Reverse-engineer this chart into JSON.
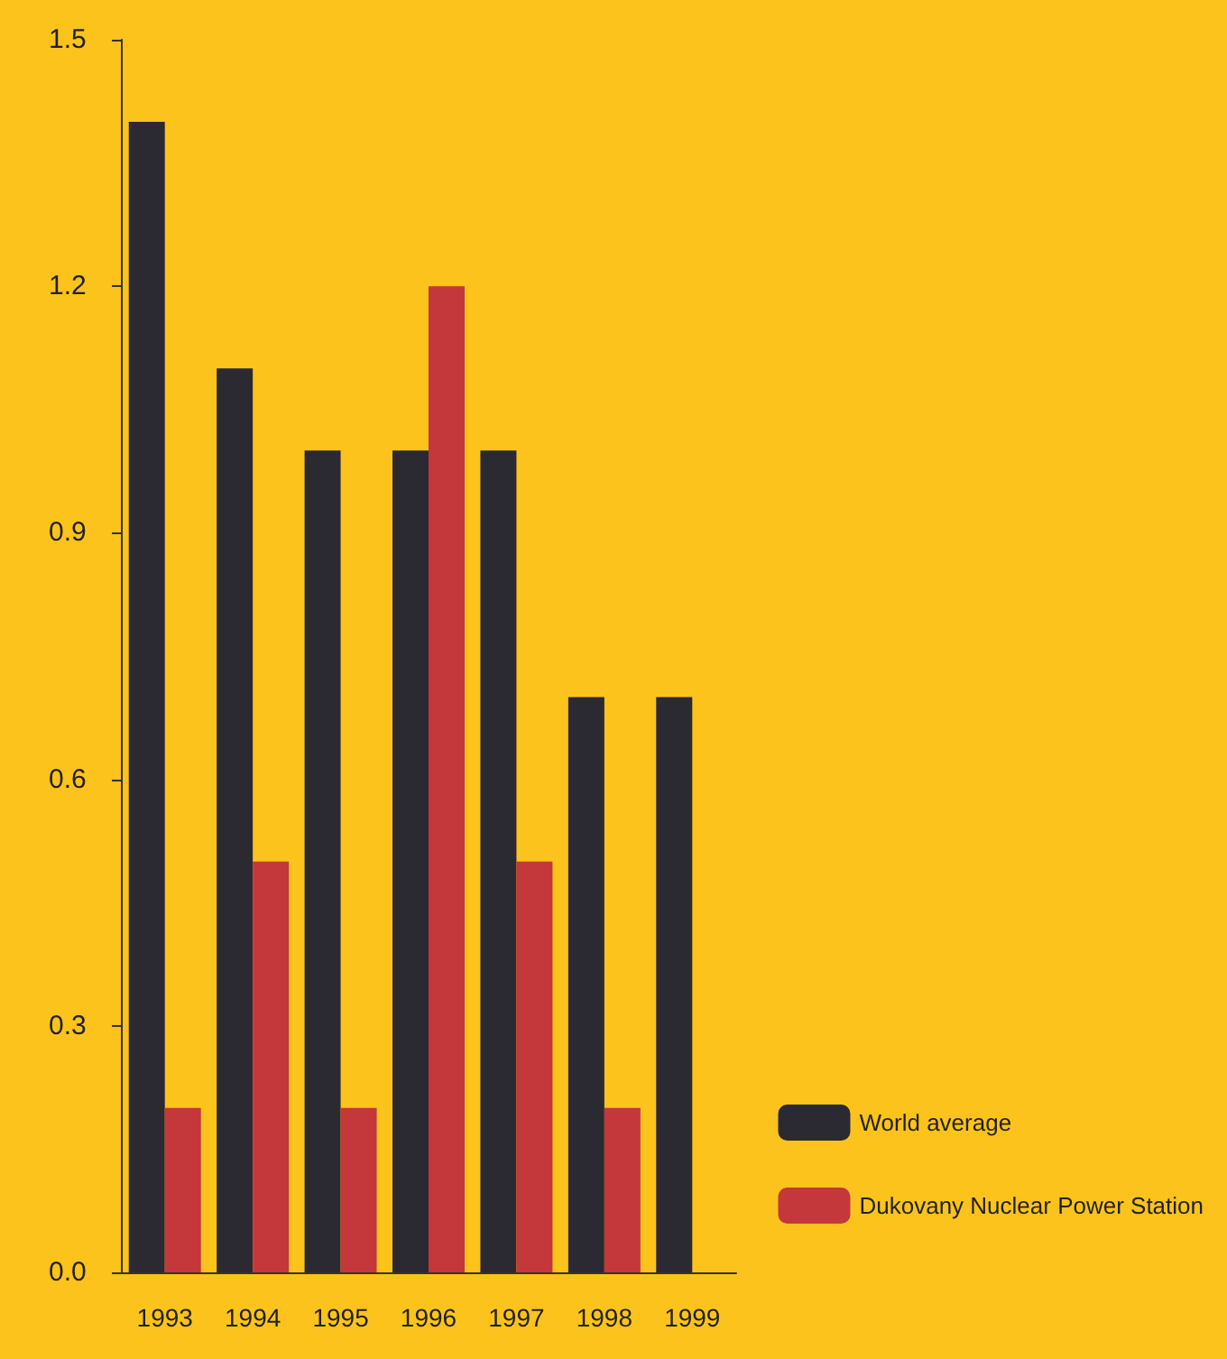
{
  "chart_data": {
    "type": "bar",
    "categories": [
      "1993",
      "1994",
      "1995",
      "1996",
      "1997",
      "1998",
      "1999"
    ],
    "series": [
      {
        "name": "World average",
        "color": "#2b2a33",
        "values": [
          1.4,
          1.1,
          1.0,
          1.0,
          1.0,
          0.7,
          0.7
        ]
      },
      {
        "name": "Dukovany Nuclear Power Station",
        "color": "#c4373b",
        "values": [
          0.2,
          0.5,
          0.2,
          1.2,
          0.5,
          0.2,
          null
        ]
      }
    ],
    "ylim": [
      0,
      1.5
    ],
    "yticks": [
      {
        "value": 0,
        "label": "0.0"
      },
      0.3,
      0.6,
      0.9,
      1.2,
      1.5
    ],
    "grid": false,
    "legend": "bottom right"
  }
}
